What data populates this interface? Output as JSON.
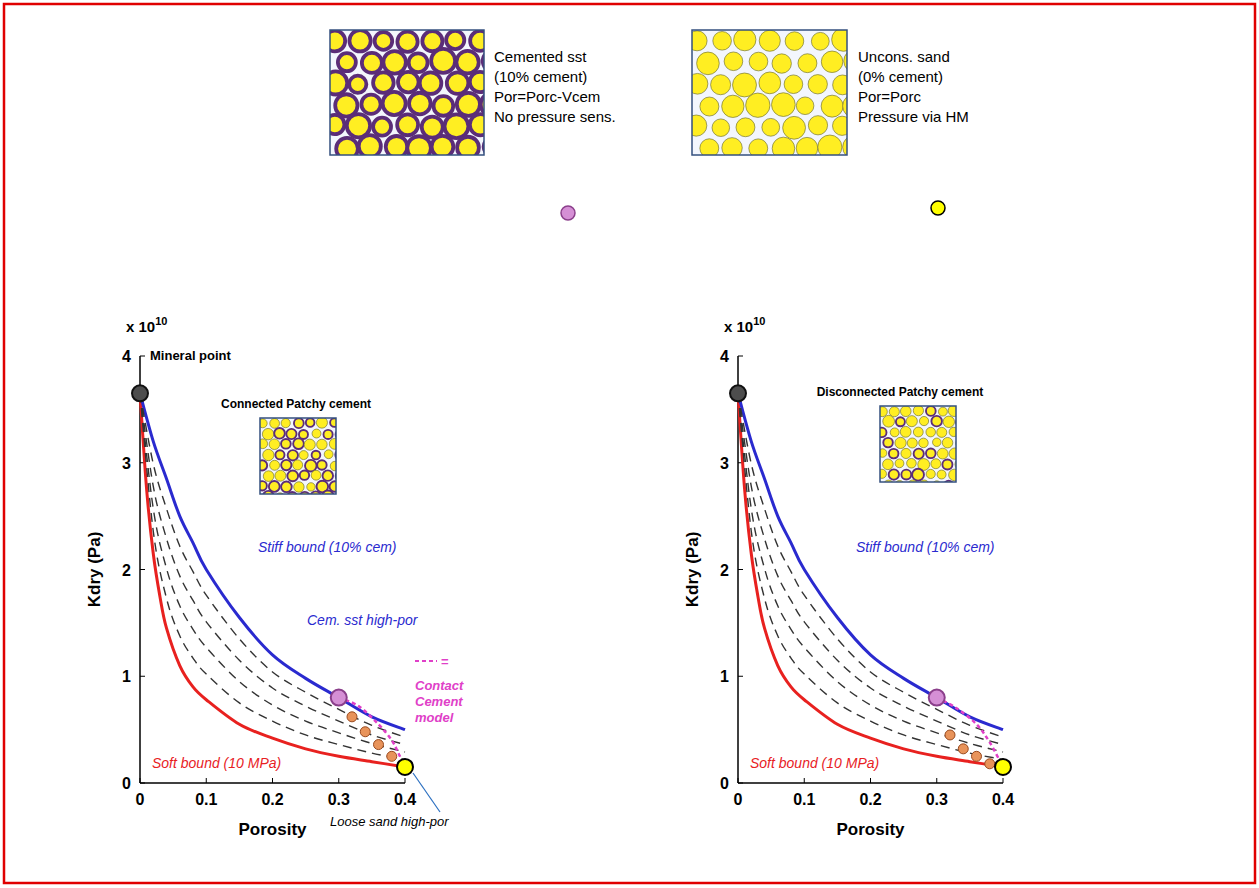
{
  "legend_panel": {
    "items": [
      {
        "lines": [
          "Cemented sst",
          "(10% cement)",
          "Por=Porc-Vcem",
          "No pressure sens."
        ],
        "color": "#d58fd5"
      },
      {
        "lines": [
          "Uncons. sand",
          "(0% cement)",
          "Por=Porc",
          "Pressure via HM"
        ],
        "color": "#ffff00"
      }
    ]
  },
  "chart_data": [
    {
      "type": "line",
      "inset_title": "Connected Patchy cement",
      "x_label": "Porosity",
      "y_label": "Kdry (Pa)",
      "y_multiplier": [
        "x 10",
        "10"
      ],
      "xlim": [
        0,
        0.4
      ],
      "ylim": [
        0,
        4
      ],
      "xticks": [
        0,
        0.1,
        0.2,
        0.3,
        0.4
      ],
      "yticks": [
        0,
        1,
        2,
        3,
        4
      ],
      "annotations": [
        "="
      ],
      "series": [
        {
          "name": "Soft bound (10 MPa)",
          "type": "line",
          "color": "#e8211f",
          "line_style": "solid",
          "x": [
            0,
            0.01,
            0.02,
            0.03,
            0.04,
            0.06,
            0.08,
            0.1,
            0.15,
            0.2,
            0.25,
            0.3,
            0.35,
            0.4
          ],
          "values": [
            3.65,
            2.75,
            2.15,
            1.75,
            1.45,
            1.1,
            0.9,
            0.78,
            0.55,
            0.42,
            0.32,
            0.25,
            0.2,
            0.15
          ]
        },
        {
          "name": "Stiff bound (10% cem)",
          "type": "line",
          "color": "#2a2acf",
          "line_style": "solid",
          "x": [
            0,
            0.02,
            0.04,
            0.06,
            0.08,
            0.1,
            0.15,
            0.2,
            0.25,
            0.3,
            0.35,
            0.4
          ],
          "values": [
            3.65,
            3.2,
            2.85,
            2.5,
            2.25,
            2.0,
            1.55,
            1.2,
            0.98,
            0.8,
            0.62,
            0.5
          ]
        },
        {
          "type": "line",
          "color": "#333333",
          "line_style": "dashed",
          "x": [
            0,
            0.02,
            0.04,
            0.06,
            0.08,
            0.1,
            0.15,
            0.2,
            0.25,
            0.3,
            0.35,
            0.4
          ],
          "values": [
            3.65,
            2.99,
            2.57,
            2.22,
            1.98,
            1.76,
            1.35,
            1.04,
            0.85,
            0.69,
            0.54,
            0.43
          ]
        },
        {
          "type": "line",
          "color": "#333333",
          "line_style": "dashed",
          "x": [
            0,
            0.02,
            0.04,
            0.06,
            0.08,
            0.1,
            0.15,
            0.2,
            0.25,
            0.3,
            0.35,
            0.4
          ],
          "values": [
            3.65,
            2.78,
            2.29,
            1.94,
            1.71,
            1.51,
            1.15,
            0.89,
            0.72,
            0.58,
            0.45,
            0.36
          ]
        },
        {
          "type": "line",
          "color": "#333333",
          "line_style": "dashed",
          "x": [
            0,
            0.02,
            0.04,
            0.06,
            0.08,
            0.1,
            0.15,
            0.2,
            0.25,
            0.3,
            0.35,
            0.4
          ],
          "values": [
            3.65,
            2.57,
            2.01,
            1.66,
            1.44,
            1.27,
            0.95,
            0.73,
            0.58,
            0.47,
            0.37,
            0.29
          ]
        },
        {
          "type": "line",
          "color": "#333333",
          "line_style": "dashed",
          "x": [
            0,
            0.02,
            0.04,
            0.06,
            0.08,
            0.1,
            0.15,
            0.2,
            0.25,
            0.3,
            0.35,
            0.4
          ],
          "values": [
            3.65,
            2.36,
            1.73,
            1.38,
            1.17,
            1.02,
            0.75,
            0.58,
            0.45,
            0.36,
            0.28,
            0.22
          ]
        },
        {
          "name": "Contact Cement model",
          "type": "line",
          "color": "#e040c8",
          "line_style": "dotted",
          "x": [
            0.3,
            0.33,
            0.36,
            0.38,
            0.39,
            0.4
          ],
          "values": [
            0.8,
            0.72,
            0.55,
            0.4,
            0.28,
            0.15
          ]
        },
        {
          "name": "Mineral point",
          "type": "scatter",
          "color": "#4d4d4d",
          "marker": "circle",
          "x": [
            0
          ],
          "values": [
            3.65
          ]
        },
        {
          "name": "Cem. sst high-por",
          "type": "scatter",
          "color": "#d58fd5",
          "marker": "circle",
          "x": [
            0.3
          ],
          "values": [
            0.8
          ]
        },
        {
          "type": "scatter",
          "color": "#e8935a",
          "marker": "dot",
          "x": [
            0.32,
            0.34,
            0.36,
            0.38
          ],
          "values": [
            0.62,
            0.48,
            0.36,
            0.25
          ]
        },
        {
          "name": "Loose sand high-por",
          "type": "scatter",
          "color": "#ffff00",
          "marker": "circle",
          "x": [
            0.4
          ],
          "values": [
            0.15
          ]
        }
      ]
    },
    {
      "type": "line",
      "inset_title": "Disconnected Patchy cement",
      "x_label": "Porosity",
      "y_label": "Kdry (Pa)",
      "y_multiplier": [
        "x 10",
        "10"
      ],
      "xlim": [
        0,
        0.4
      ],
      "ylim": [
        0,
        4
      ],
      "xticks": [
        0,
        0.1,
        0.2,
        0.3,
        0.4
      ],
      "yticks": [
        0,
        1,
        2,
        3,
        4
      ],
      "series": [
        {
          "name": "Soft bound (10 MPa)",
          "type": "line",
          "color": "#e8211f",
          "line_style": "solid",
          "x": [
            0,
            0.01,
            0.02,
            0.03,
            0.04,
            0.06,
            0.08,
            0.1,
            0.15,
            0.2,
            0.25,
            0.3,
            0.35,
            0.4
          ],
          "values": [
            3.65,
            2.75,
            2.15,
            1.75,
            1.45,
            1.1,
            0.9,
            0.78,
            0.55,
            0.42,
            0.32,
            0.25,
            0.2,
            0.15
          ]
        },
        {
          "name": "Stiff bound (10% cem)",
          "type": "line",
          "color": "#2a2acf",
          "line_style": "solid",
          "x": [
            0,
            0.02,
            0.04,
            0.06,
            0.08,
            0.1,
            0.15,
            0.2,
            0.25,
            0.3,
            0.35,
            0.4
          ],
          "values": [
            3.65,
            3.2,
            2.85,
            2.5,
            2.25,
            2.0,
            1.55,
            1.2,
            0.98,
            0.8,
            0.62,
            0.5
          ]
        },
        {
          "type": "line",
          "color": "#333333",
          "line_style": "dashed",
          "x": [
            0,
            0.02,
            0.04,
            0.06,
            0.08,
            0.1,
            0.15,
            0.2,
            0.25,
            0.3,
            0.35,
            0.4
          ],
          "values": [
            3.65,
            2.99,
            2.57,
            2.22,
            1.98,
            1.76,
            1.35,
            1.04,
            0.85,
            0.69,
            0.54,
            0.43
          ]
        },
        {
          "type": "line",
          "color": "#333333",
          "line_style": "dashed",
          "x": [
            0,
            0.02,
            0.04,
            0.06,
            0.08,
            0.1,
            0.15,
            0.2,
            0.25,
            0.3,
            0.35,
            0.4
          ],
          "values": [
            3.65,
            2.78,
            2.29,
            1.94,
            1.71,
            1.51,
            1.15,
            0.89,
            0.72,
            0.58,
            0.45,
            0.36
          ]
        },
        {
          "type": "line",
          "color": "#333333",
          "line_style": "dashed",
          "x": [
            0,
            0.02,
            0.04,
            0.06,
            0.08,
            0.1,
            0.15,
            0.2,
            0.25,
            0.3,
            0.35,
            0.4
          ],
          "values": [
            3.65,
            2.57,
            2.01,
            1.66,
            1.44,
            1.27,
            0.95,
            0.73,
            0.58,
            0.47,
            0.37,
            0.29
          ]
        },
        {
          "type": "line",
          "color": "#333333",
          "line_style": "dashed",
          "x": [
            0,
            0.02,
            0.04,
            0.06,
            0.08,
            0.1,
            0.15,
            0.2,
            0.25,
            0.3,
            0.35,
            0.4
          ],
          "values": [
            3.65,
            2.36,
            1.73,
            1.38,
            1.17,
            1.02,
            0.75,
            0.58,
            0.45,
            0.36,
            0.28,
            0.22
          ]
        },
        {
          "type": "line",
          "color": "#e040c8",
          "line_style": "dotted",
          "x": [
            0.3,
            0.33,
            0.36,
            0.38,
            0.4
          ],
          "values": [
            0.8,
            0.7,
            0.55,
            0.38,
            0.15
          ]
        },
        {
          "type": "scatter",
          "color": "#4d4d4d",
          "marker": "circle",
          "x": [
            0
          ],
          "values": [
            3.65
          ]
        },
        {
          "type": "scatter",
          "color": "#d58fd5",
          "marker": "circle",
          "x": [
            0.3
          ],
          "values": [
            0.8
          ]
        },
        {
          "type": "scatter",
          "color": "#e8935a",
          "marker": "dot",
          "x": [
            0.32,
            0.34,
            0.36,
            0.38
          ],
          "values": [
            0.45,
            0.32,
            0.25,
            0.18
          ]
        },
        {
          "type": "scatter",
          "color": "#ffff00",
          "marker": "circle",
          "x": [
            0.4
          ],
          "values": [
            0.15
          ]
        }
      ]
    }
  ]
}
